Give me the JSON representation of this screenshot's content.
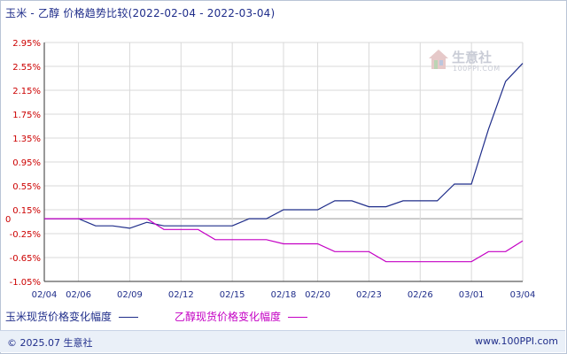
{
  "title": {
    "main": "玉米 - 乙醇 价格趋势比较",
    "range": "(2022-02-04 - 2022-03-04)"
  },
  "watermark": {
    "name": "生意社",
    "url": "100PPI.COM"
  },
  "footer": {
    "copyright": "© 2025.07 生意社",
    "site": "www.100PPI.com"
  },
  "colors": {
    "series1": "#1f2d8a",
    "series2": "#c400c4",
    "ylabel": "#cc0000",
    "grid": "#d9d9d9",
    "axis": "#333333",
    "zero": "#999999"
  },
  "chart_data": {
    "type": "line",
    "x": [
      "02/04",
      "02/05",
      "02/06",
      "02/07",
      "02/08",
      "02/09",
      "02/10",
      "02/11",
      "02/12",
      "02/13",
      "02/14",
      "02/15",
      "02/16",
      "02/17",
      "02/18",
      "02/19",
      "02/20",
      "02/21",
      "02/22",
      "02/23",
      "02/24",
      "02/25",
      "02/26",
      "02/27",
      "02/28",
      "03/01",
      "03/02",
      "03/03",
      "03/04"
    ],
    "x_ticks": [
      "02/04",
      "02/06",
      "02/09",
      "02/12",
      "02/15",
      "02/18",
      "02/20",
      "02/23",
      "02/26",
      "03/01",
      "03/04"
    ],
    "y_ticks": [
      "2.95%",
      "2.55%",
      "2.15%",
      "1.75%",
      "1.35%",
      "0.95%",
      "0.55%",
      "0.15%",
      "-0.25%",
      "-0.65%",
      "-1.05%"
    ],
    "y_tick_values": [
      2.95,
      2.55,
      2.15,
      1.75,
      1.35,
      0.95,
      0.55,
      0.15,
      -0.25,
      -0.65,
      -1.05
    ],
    "zero_label": "0",
    "ylim": [
      -1.05,
      2.95
    ],
    "grid": true,
    "legend_position": "bottom",
    "series": [
      {
        "name": "玉米现货价格变化幅度",
        "values": [
          0,
          0,
          0,
          -0.12,
          -0.12,
          -0.16,
          -0.06,
          -0.12,
          -0.12,
          -0.12,
          -0.12,
          -0.12,
          0,
          0,
          0.15,
          0.15,
          0.15,
          0.3,
          0.3,
          0.2,
          0.2,
          0.3,
          0.3,
          0.3,
          0.58,
          0.58,
          1.5,
          2.3,
          2.6
        ]
      },
      {
        "name": "乙醇现货价格变化幅度",
        "values": [
          0,
          0,
          0,
          0,
          0,
          0,
          0,
          -0.18,
          -0.18,
          -0.18,
          -0.35,
          -0.35,
          -0.35,
          -0.35,
          -0.42,
          -0.42,
          -0.42,
          -0.55,
          -0.55,
          -0.55,
          -0.72,
          -0.72,
          -0.72,
          -0.72,
          -0.72,
          -0.72,
          -0.55,
          -0.55,
          -0.37
        ]
      }
    ]
  }
}
